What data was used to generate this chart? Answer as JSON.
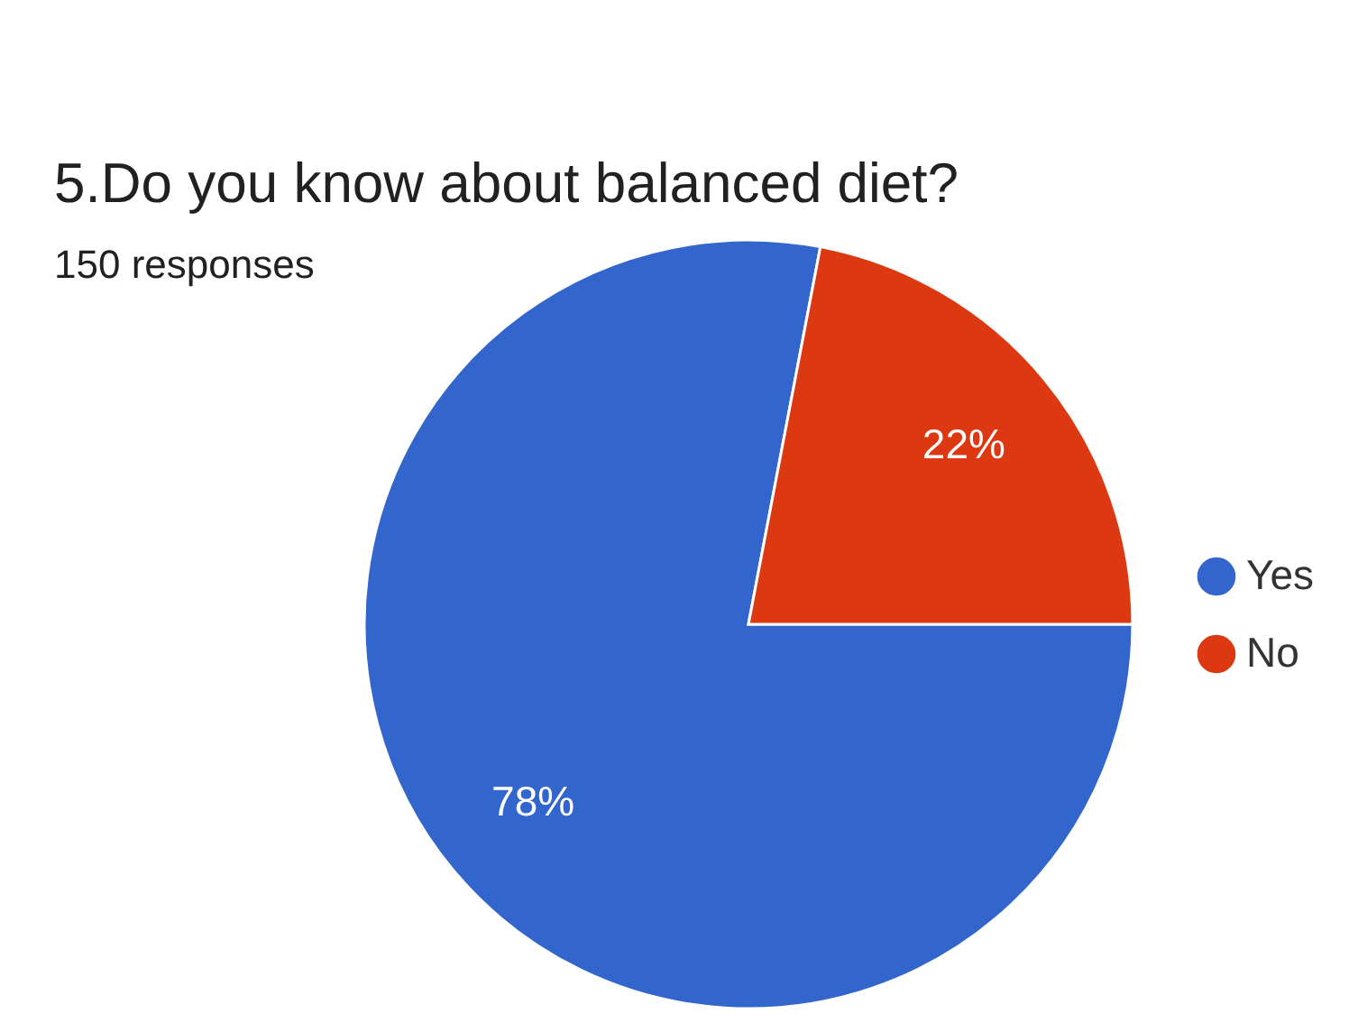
{
  "chart_data": {
    "type": "pie",
    "title": "5.Do you know about balanced diet?",
    "subtitle": "150 responses",
    "categories": [
      "Yes",
      "No"
    ],
    "values": [
      78,
      22
    ],
    "colors": [
      "#3366cc",
      "#dc3912"
    ],
    "value_labels": [
      "78%",
      "22%"
    ],
    "legend": "right"
  }
}
